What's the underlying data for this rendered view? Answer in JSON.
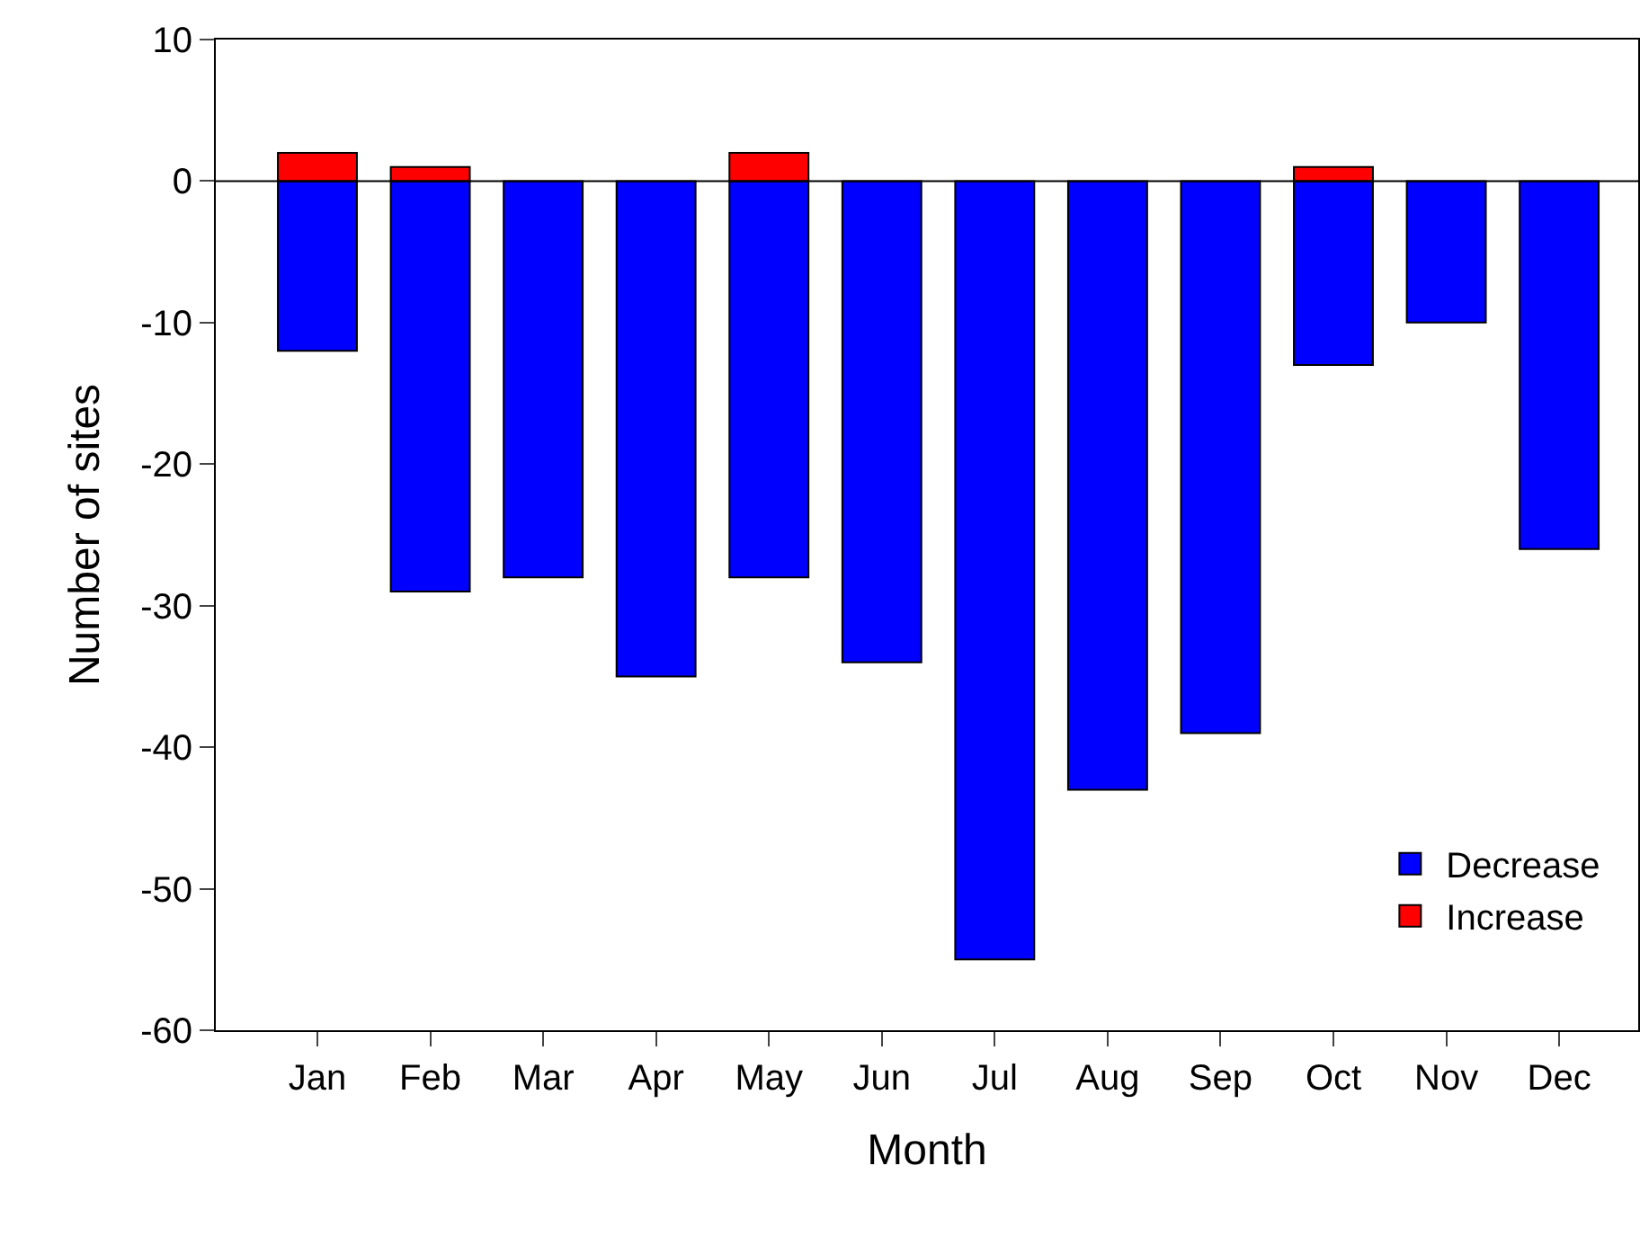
{
  "chart_data": {
    "type": "bar",
    "stacked": true,
    "xlabel": "Month",
    "ylabel": "Number of sites",
    "categories": [
      "Jan",
      "Feb",
      "Mar",
      "Apr",
      "May",
      "Jun",
      "Jul",
      "Aug",
      "Sep",
      "Oct",
      "Nov",
      "Dec"
    ],
    "series": [
      {
        "name": "Decrease",
        "color": "#0000ff",
        "values": [
          -12,
          -29,
          -28,
          -35,
          -28,
          -34,
          -55,
          -43,
          -39,
          -13,
          -10,
          -26
        ]
      },
      {
        "name": "Increase",
        "color": "#ff0000",
        "values": [
          2,
          1,
          null,
          null,
          2,
          null,
          null,
          null,
          null,
          1,
          null,
          null
        ]
      }
    ],
    "ylim": [
      -60,
      10
    ],
    "yticks": [
      -60,
      -50,
      -40,
      -30,
      -20,
      -10,
      0,
      10
    ],
    "ref_lines": [
      {
        "axis": "y",
        "value": 0
      }
    ],
    "legend": "bottom right"
  }
}
